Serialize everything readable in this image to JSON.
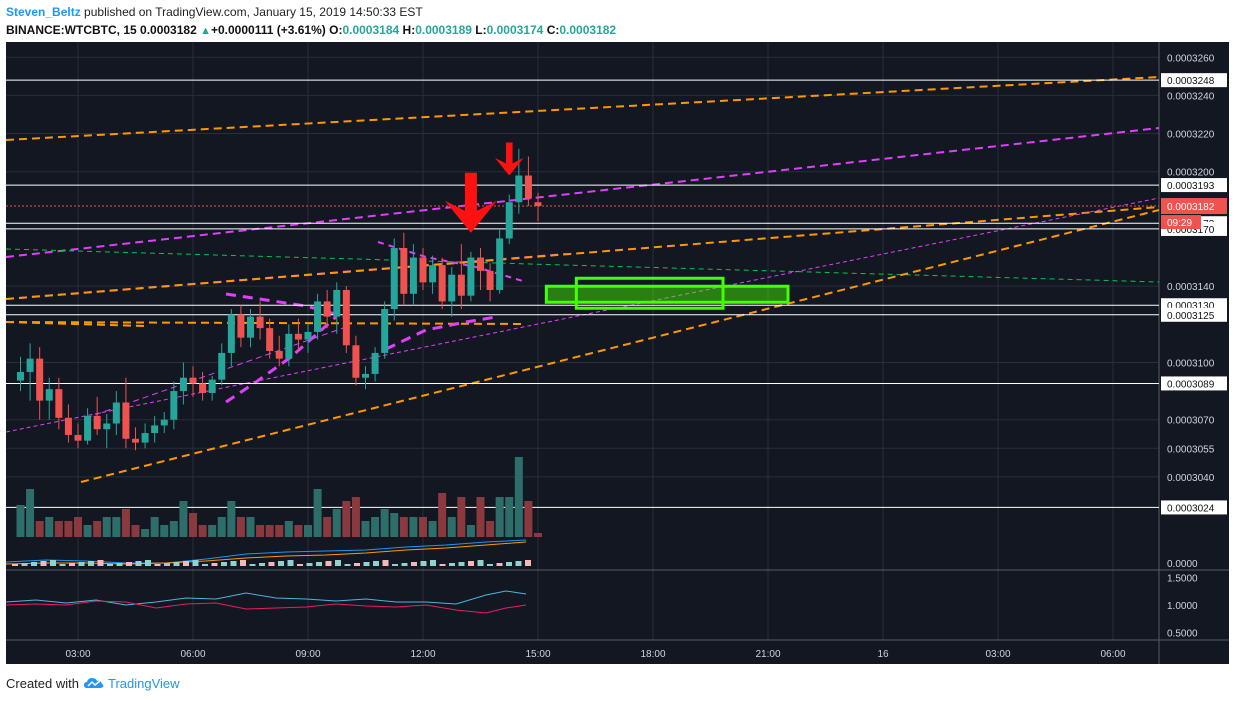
{
  "header": {
    "author": "Steven_Beltz",
    "published_text": "published on TradingView.com, January 15, 2019 14:50:33 EST",
    "symbol": "BINANCE:WTCBTC, 15",
    "last": "0.0003182",
    "up_arrow": "▲",
    "change": "+0.0000111 (+3.61%)",
    "o_label": "O:",
    "o_value": "0.0003184",
    "h_label": "H:",
    "h_value": "0.0003189",
    "l_label": "L:",
    "l_value": "0.0003174",
    "c_label": "C:",
    "c_value": "0.0003182"
  },
  "footer": {
    "created_with": "Created with",
    "brand": "TradingView",
    "logo_icon": "tradingview-cloud-icon"
  },
  "colors": {
    "background": "#131722",
    "grid": "#2a2e39",
    "up": "#26a69a",
    "down": "#ef5350",
    "orange": "#ff9800",
    "magenta": "#e040fb",
    "green_line": "#00c853",
    "green_box": "#44ff00",
    "white_line": "#ffffff",
    "arrow": "#ff1111"
  },
  "chart_data": {
    "type": "candlestick",
    "timeframe": "15",
    "x_tick_labels": [
      "03:00",
      "06:00",
      "09:00",
      "12:00",
      "15:00",
      "18:00",
      "21:00",
      "16",
      "03:00",
      "06:00"
    ],
    "price_axis": {
      "range": [
        0.00030085,
        0.0003268
      ],
      "tick_labels": [
        {
          "v": 0.000326,
          "t": "0.0003260"
        },
        {
          "v": 0.000324,
          "t": "0.0003240"
        },
        {
          "v": 0.000322,
          "t": "0.0003220"
        },
        {
          "v": 0.00032,
          "t": "0.0003200"
        },
        {
          "v": 0.000314,
          "t": "0.0003140"
        },
        {
          "v": 0.00031,
          "t": "0.0003100"
        },
        {
          "v": 0.000307,
          "t": "0.0003070"
        },
        {
          "v": 0.0003055,
          "t": "0.0003055"
        },
        {
          "v": 0.000304,
          "t": "0.0003040"
        }
      ],
      "horizontal_levels": [
        {
          "v": 0.0003248,
          "t": "0.0003248"
        },
        {
          "v": 0.0003193,
          "t": "0.0003193"
        },
        {
          "v": 0.0003173,
          "t": "0.0003173"
        },
        {
          "v": 0.000317,
          "t": "0.0003170"
        },
        {
          "v": 0.000313,
          "t": "0.0003130"
        },
        {
          "v": 0.0003125,
          "t": "0.0003125"
        },
        {
          "v": 0.0003089,
          "t": "0.0003089"
        },
        {
          "v": 0.0003024,
          "t": "0.0003024"
        }
      ],
      "last_price": {
        "v": 0.0003182,
        "t": "0.0003182",
        "countdown": "09:29"
      }
    },
    "macd_axis": {
      "tick_labels": [
        "0.0000"
      ]
    },
    "rsi_axis": {
      "range": [
        0.4,
        1.6
      ],
      "tick_labels": [
        {
          "v": 1.5,
          "t": "1.5000"
        },
        {
          "v": 1.0,
          "t": "1.0000"
        },
        {
          "v": 0.5,
          "t": "0.5000"
        }
      ]
    },
    "candles": [
      {
        "t": "01:30",
        "o": 0.00030905,
        "h": 0.0003103,
        "l": 0.0003085,
        "c": 0.0003095
      },
      {
        "t": "01:45",
        "o": 0.0003095,
        "h": 0.000311,
        "l": 0.000308,
        "c": 0.0003102
      },
      {
        "t": "02:00",
        "o": 0.0003102,
        "h": 0.0003108,
        "l": 0.000307,
        "c": 0.000308
      },
      {
        "t": "02:15",
        "o": 0.000308,
        "h": 0.0003092,
        "l": 0.000307,
        "c": 0.0003086
      },
      {
        "t": "02:30",
        "o": 0.0003086,
        "h": 0.0003092,
        "l": 0.0003065,
        "c": 0.0003071
      },
      {
        "t": "02:45",
        "o": 0.0003071,
        "h": 0.0003078,
        "l": 0.0003058,
        "c": 0.0003062
      },
      {
        "t": "03:00",
        "o": 0.0003062,
        "h": 0.0003068,
        "l": 0.0003055,
        "c": 0.0003059
      },
      {
        "t": "03:15",
        "o": 0.0003059,
        "h": 0.0003076,
        "l": 0.0003057,
        "c": 0.0003072
      },
      {
        "t": "03:30",
        "o": 0.0003072,
        "h": 0.0003082,
        "l": 0.0003062,
        "c": 0.0003065
      },
      {
        "t": "03:45",
        "o": 0.0003065,
        "h": 0.0003073,
        "l": 0.0003055,
        "c": 0.0003068
      },
      {
        "t": "04:00",
        "o": 0.0003068,
        "h": 0.0003085,
        "l": 0.0003062,
        "c": 0.0003079
      },
      {
        "t": "04:15",
        "o": 0.0003079,
        "h": 0.0003092,
        "l": 0.0003055,
        "c": 0.000306
      },
      {
        "t": "04:30",
        "o": 0.000306,
        "h": 0.0003066,
        "l": 0.0003054,
        "c": 0.0003058
      },
      {
        "t": "04:45",
        "o": 0.0003058,
        "h": 0.0003068,
        "l": 0.0003055,
        "c": 0.0003063
      },
      {
        "t": "05:00",
        "o": 0.0003063,
        "h": 0.0003072,
        "l": 0.0003058,
        "c": 0.0003067
      },
      {
        "t": "05:15",
        "o": 0.0003067,
        "h": 0.0003074,
        "l": 0.0003063,
        "c": 0.000307
      },
      {
        "t": "05:30",
        "o": 0.000307,
        "h": 0.000309,
        "l": 0.0003065,
        "c": 0.0003085
      },
      {
        "t": "05:45",
        "o": 0.0003085,
        "h": 0.00031,
        "l": 0.0003078,
        "c": 0.0003092
      },
      {
        "t": "06:00",
        "o": 0.0003092,
        "h": 0.0003098,
        "l": 0.0003082,
        "c": 0.0003089
      },
      {
        "t": "06:15",
        "o": 0.0003089,
        "h": 0.0003095,
        "l": 0.000308,
        "c": 0.0003084
      },
      {
        "t": "06:30",
        "o": 0.0003084,
        "h": 0.0003093,
        "l": 0.000308,
        "c": 0.0003091
      },
      {
        "t": "06:45",
        "o": 0.0003091,
        "h": 0.000311,
        "l": 0.0003088,
        "c": 0.0003105
      },
      {
        "t": "07:00",
        "o": 0.0003105,
        "h": 0.0003128,
        "l": 0.0003098,
        "c": 0.0003125
      },
      {
        "t": "07:15",
        "o": 0.0003125,
        "h": 0.000313,
        "l": 0.0003108,
        "c": 0.0003113
      },
      {
        "t": "07:30",
        "o": 0.0003113,
        "h": 0.0003128,
        "l": 0.0003108,
        "c": 0.0003124
      },
      {
        "t": "07:45",
        "o": 0.0003124,
        "h": 0.0003132,
        "l": 0.0003112,
        "c": 0.0003118
      },
      {
        "t": "08:00",
        "o": 0.0003118,
        "h": 0.0003123,
        "l": 0.0003102,
        "c": 0.0003106
      },
      {
        "t": "08:15",
        "o": 0.0003106,
        "h": 0.0003114,
        "l": 0.0003098,
        "c": 0.0003102
      },
      {
        "t": "08:30",
        "o": 0.0003102,
        "h": 0.000312,
        "l": 0.0003098,
        "c": 0.0003115
      },
      {
        "t": "08:45",
        "o": 0.0003115,
        "h": 0.0003123,
        "l": 0.0003106,
        "c": 0.0003112
      },
      {
        "t": "09:00",
        "o": 0.0003112,
        "h": 0.000312,
        "l": 0.0003105,
        "c": 0.0003116
      },
      {
        "t": "09:15",
        "o": 0.0003116,
        "h": 0.0003136,
        "l": 0.0003112,
        "c": 0.0003132
      },
      {
        "t": "09:30",
        "o": 0.0003132,
        "h": 0.0003138,
        "l": 0.0003118,
        "c": 0.0003124
      },
      {
        "t": "09:45",
        "o": 0.0003124,
        "h": 0.0003142,
        "l": 0.0003115,
        "c": 0.0003138
      },
      {
        "t": "10:00",
        "o": 0.0003138,
        "h": 0.000314,
        "l": 0.0003105,
        "c": 0.0003109
      },
      {
        "t": "10:15",
        "o": 0.0003109,
        "h": 0.0003114,
        "l": 0.0003088,
        "c": 0.0003092
      },
      {
        "t": "10:30",
        "o": 0.0003092,
        "h": 0.0003098,
        "l": 0.0003086,
        "c": 0.0003094
      },
      {
        "t": "10:45",
        "o": 0.0003094,
        "h": 0.0003108,
        "l": 0.000309,
        "c": 0.0003105
      },
      {
        "t": "11:00",
        "o": 0.0003105,
        "h": 0.0003132,
        "l": 0.0003102,
        "c": 0.0003128
      },
      {
        "t": "11:15",
        "o": 0.0003128,
        "h": 0.0003165,
        "l": 0.0003122,
        "c": 0.000316
      },
      {
        "t": "11:30",
        "o": 0.000316,
        "h": 0.0003168,
        "l": 0.000313,
        "c": 0.0003136
      },
      {
        "t": "11:45",
        "o": 0.0003136,
        "h": 0.0003162,
        "l": 0.000313,
        "c": 0.0003155
      },
      {
        "t": "12:00",
        "o": 0.0003155,
        "h": 0.000316,
        "l": 0.0003138,
        "c": 0.0003142
      },
      {
        "t": "12:15",
        "o": 0.0003142,
        "h": 0.0003156,
        "l": 0.0003136,
        "c": 0.0003151
      },
      {
        "t": "12:30",
        "o": 0.0003151,
        "h": 0.0003155,
        "l": 0.0003128,
        "c": 0.0003132
      },
      {
        "t": "12:45",
        "o": 0.0003132,
        "h": 0.000315,
        "l": 0.0003124,
        "c": 0.0003146
      },
      {
        "t": "13:00",
        "o": 0.0003146,
        "h": 0.0003162,
        "l": 0.0003128,
        "c": 0.0003135
      },
      {
        "t": "13:15",
        "o": 0.0003135,
        "h": 0.0003158,
        "l": 0.0003132,
        "c": 0.0003155
      },
      {
        "t": "13:30",
        "o": 0.0003155,
        "h": 0.000316,
        "l": 0.0003138,
        "c": 0.0003148
      },
      {
        "t": "13:45",
        "o": 0.0003148,
        "h": 0.0003152,
        "l": 0.0003132,
        "c": 0.0003138
      },
      {
        "t": "14:00",
        "o": 0.0003138,
        "h": 0.000317,
        "l": 0.0003136,
        "c": 0.0003165
      },
      {
        "t": "14:15",
        "o": 0.0003165,
        "h": 0.0003188,
        "l": 0.0003162,
        "c": 0.0003184
      },
      {
        "t": "14:30",
        "o": 0.0003184,
        "h": 0.0003212,
        "l": 0.0003178,
        "c": 0.0003198
      },
      {
        "t": "14:45",
        "o": 0.0003198,
        "h": 0.0003208,
        "l": 0.0003182,
        "c": 0.0003186
      },
      {
        "t": "15:00",
        "o": 0.0003184,
        "h": 0.0003189,
        "l": 0.0003174,
        "c": 0.0003182
      }
    ],
    "volume": [
      8,
      12,
      4,
      5,
      4,
      4,
      5,
      3,
      4,
      5,
      5,
      7,
      3,
      2,
      5,
      3,
      4,
      9,
      6,
      3,
      3,
      5,
      9,
      5,
      5,
      3,
      3,
      3,
      4,
      3,
      3,
      12,
      5,
      7,
      9,
      10,
      4,
      5,
      7,
      6,
      5,
      5,
      5,
      4,
      11,
      5,
      10,
      3,
      10,
      4,
      10,
      10,
      20,
      9,
      1
    ],
    "annotations": {
      "green_zone": {
        "from_time": "16:00",
        "to_time": "21:00",
        "price_low": 0.0003128,
        "price_high": 0.0003141
      },
      "red_arrows": [
        {
          "time": "13:15",
          "price": 0.0003168,
          "size": "large"
        },
        {
          "time": "14:15",
          "price": 0.0003198,
          "size": "small"
        }
      ]
    }
  }
}
